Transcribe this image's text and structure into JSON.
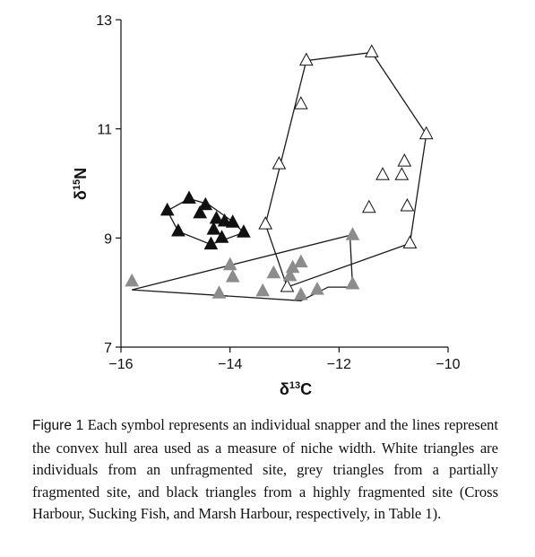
{
  "chart_data": {
    "type": "scatter",
    "xlabel": {
      "symbol": "δ",
      "sup": "13",
      "element": "C"
    },
    "ylabel": {
      "symbol": "δ",
      "sup": "15",
      "element": "N"
    },
    "xlim": [
      -16,
      -10
    ],
    "ylim": [
      7,
      13
    ],
    "xticks": [
      -16,
      -14,
      -12,
      -10
    ],
    "yticks": [
      7,
      9,
      11,
      13
    ],
    "xtick_labels": [
      "−16",
      "−14",
      "−12",
      "−10"
    ],
    "ytick_labels": [
      "7",
      "9",
      "11",
      "13"
    ],
    "series": [
      {
        "key": "white",
        "fill": "#ffffff",
        "points": [
          [
            -12.6,
            12.25
          ],
          [
            -11.4,
            12.4
          ],
          [
            -12.7,
            11.45
          ],
          [
            -10.4,
            10.9
          ],
          [
            -13.1,
            10.35
          ],
          [
            -11.2,
            10.15
          ],
          [
            -10.8,
            10.4
          ],
          [
            -10.85,
            10.15
          ],
          [
            -11.45,
            9.55
          ],
          [
            -10.75,
            9.58
          ],
          [
            -13.35,
            9.25
          ],
          [
            -10.7,
            8.9
          ],
          [
            -12.95,
            8.1
          ]
        ],
        "hull": [
          [
            -13.35,
            9.25
          ],
          [
            -12.6,
            12.25
          ],
          [
            -11.4,
            12.4
          ],
          [
            -10.4,
            10.9
          ],
          [
            -10.7,
            8.9
          ],
          [
            -12.95,
            8.1
          ]
        ]
      },
      {
        "key": "grey",
        "fill": "#8c8c8c",
        "points": [
          [
            -15.8,
            8.2
          ],
          [
            -14.2,
            7.98
          ],
          [
            -14.0,
            8.5
          ],
          [
            -13.95,
            8.28
          ],
          [
            -13.4,
            8.02
          ],
          [
            -13.2,
            8.35
          ],
          [
            -12.9,
            8.3
          ],
          [
            -12.85,
            8.45
          ],
          [
            -12.7,
            8.55
          ],
          [
            -12.7,
            7.95
          ],
          [
            -12.4,
            8.05
          ],
          [
            -11.75,
            9.05
          ],
          [
            -11.75,
            8.15
          ]
        ],
        "hull": [
          [
            -15.8,
            8.05
          ],
          [
            -11.8,
            9.05
          ],
          [
            -11.75,
            8.1
          ],
          [
            -12.2,
            8.1
          ],
          [
            -12.7,
            7.85
          ]
        ]
      },
      {
        "key": "black",
        "fill": "#111111",
        "points": [
          [
            -15.15,
            9.5
          ],
          [
            -14.75,
            9.72
          ],
          [
            -14.55,
            9.45
          ],
          [
            -14.45,
            9.6
          ],
          [
            -14.95,
            9.12
          ],
          [
            -14.3,
            9.15
          ],
          [
            -14.25,
            9.35
          ],
          [
            -14.1,
            9.3
          ],
          [
            -14.15,
            9.0
          ],
          [
            -13.95,
            9.28
          ],
          [
            -14.35,
            8.88
          ],
          [
            -13.75,
            9.1
          ]
        ],
        "hull": [
          [
            -15.15,
            9.5
          ],
          [
            -14.75,
            9.72
          ],
          [
            -14.4,
            9.62
          ],
          [
            -13.95,
            9.3
          ],
          [
            -13.75,
            9.1
          ],
          [
            -14.35,
            8.88
          ],
          [
            -14.95,
            9.12
          ]
        ]
      }
    ]
  },
  "caption": {
    "label": "Figure 1",
    "text": " Each symbol represents an individual snapper and the lines represent the convex hull area used as a measure of niche width. White triangles are individuals from an unfragmented site, grey triangles from a partially fragmented site, and black triangles from a highly fragmented site (Cross Harbour, Sucking Fish, and Marsh Harbour, respectively, in Table 1)."
  }
}
